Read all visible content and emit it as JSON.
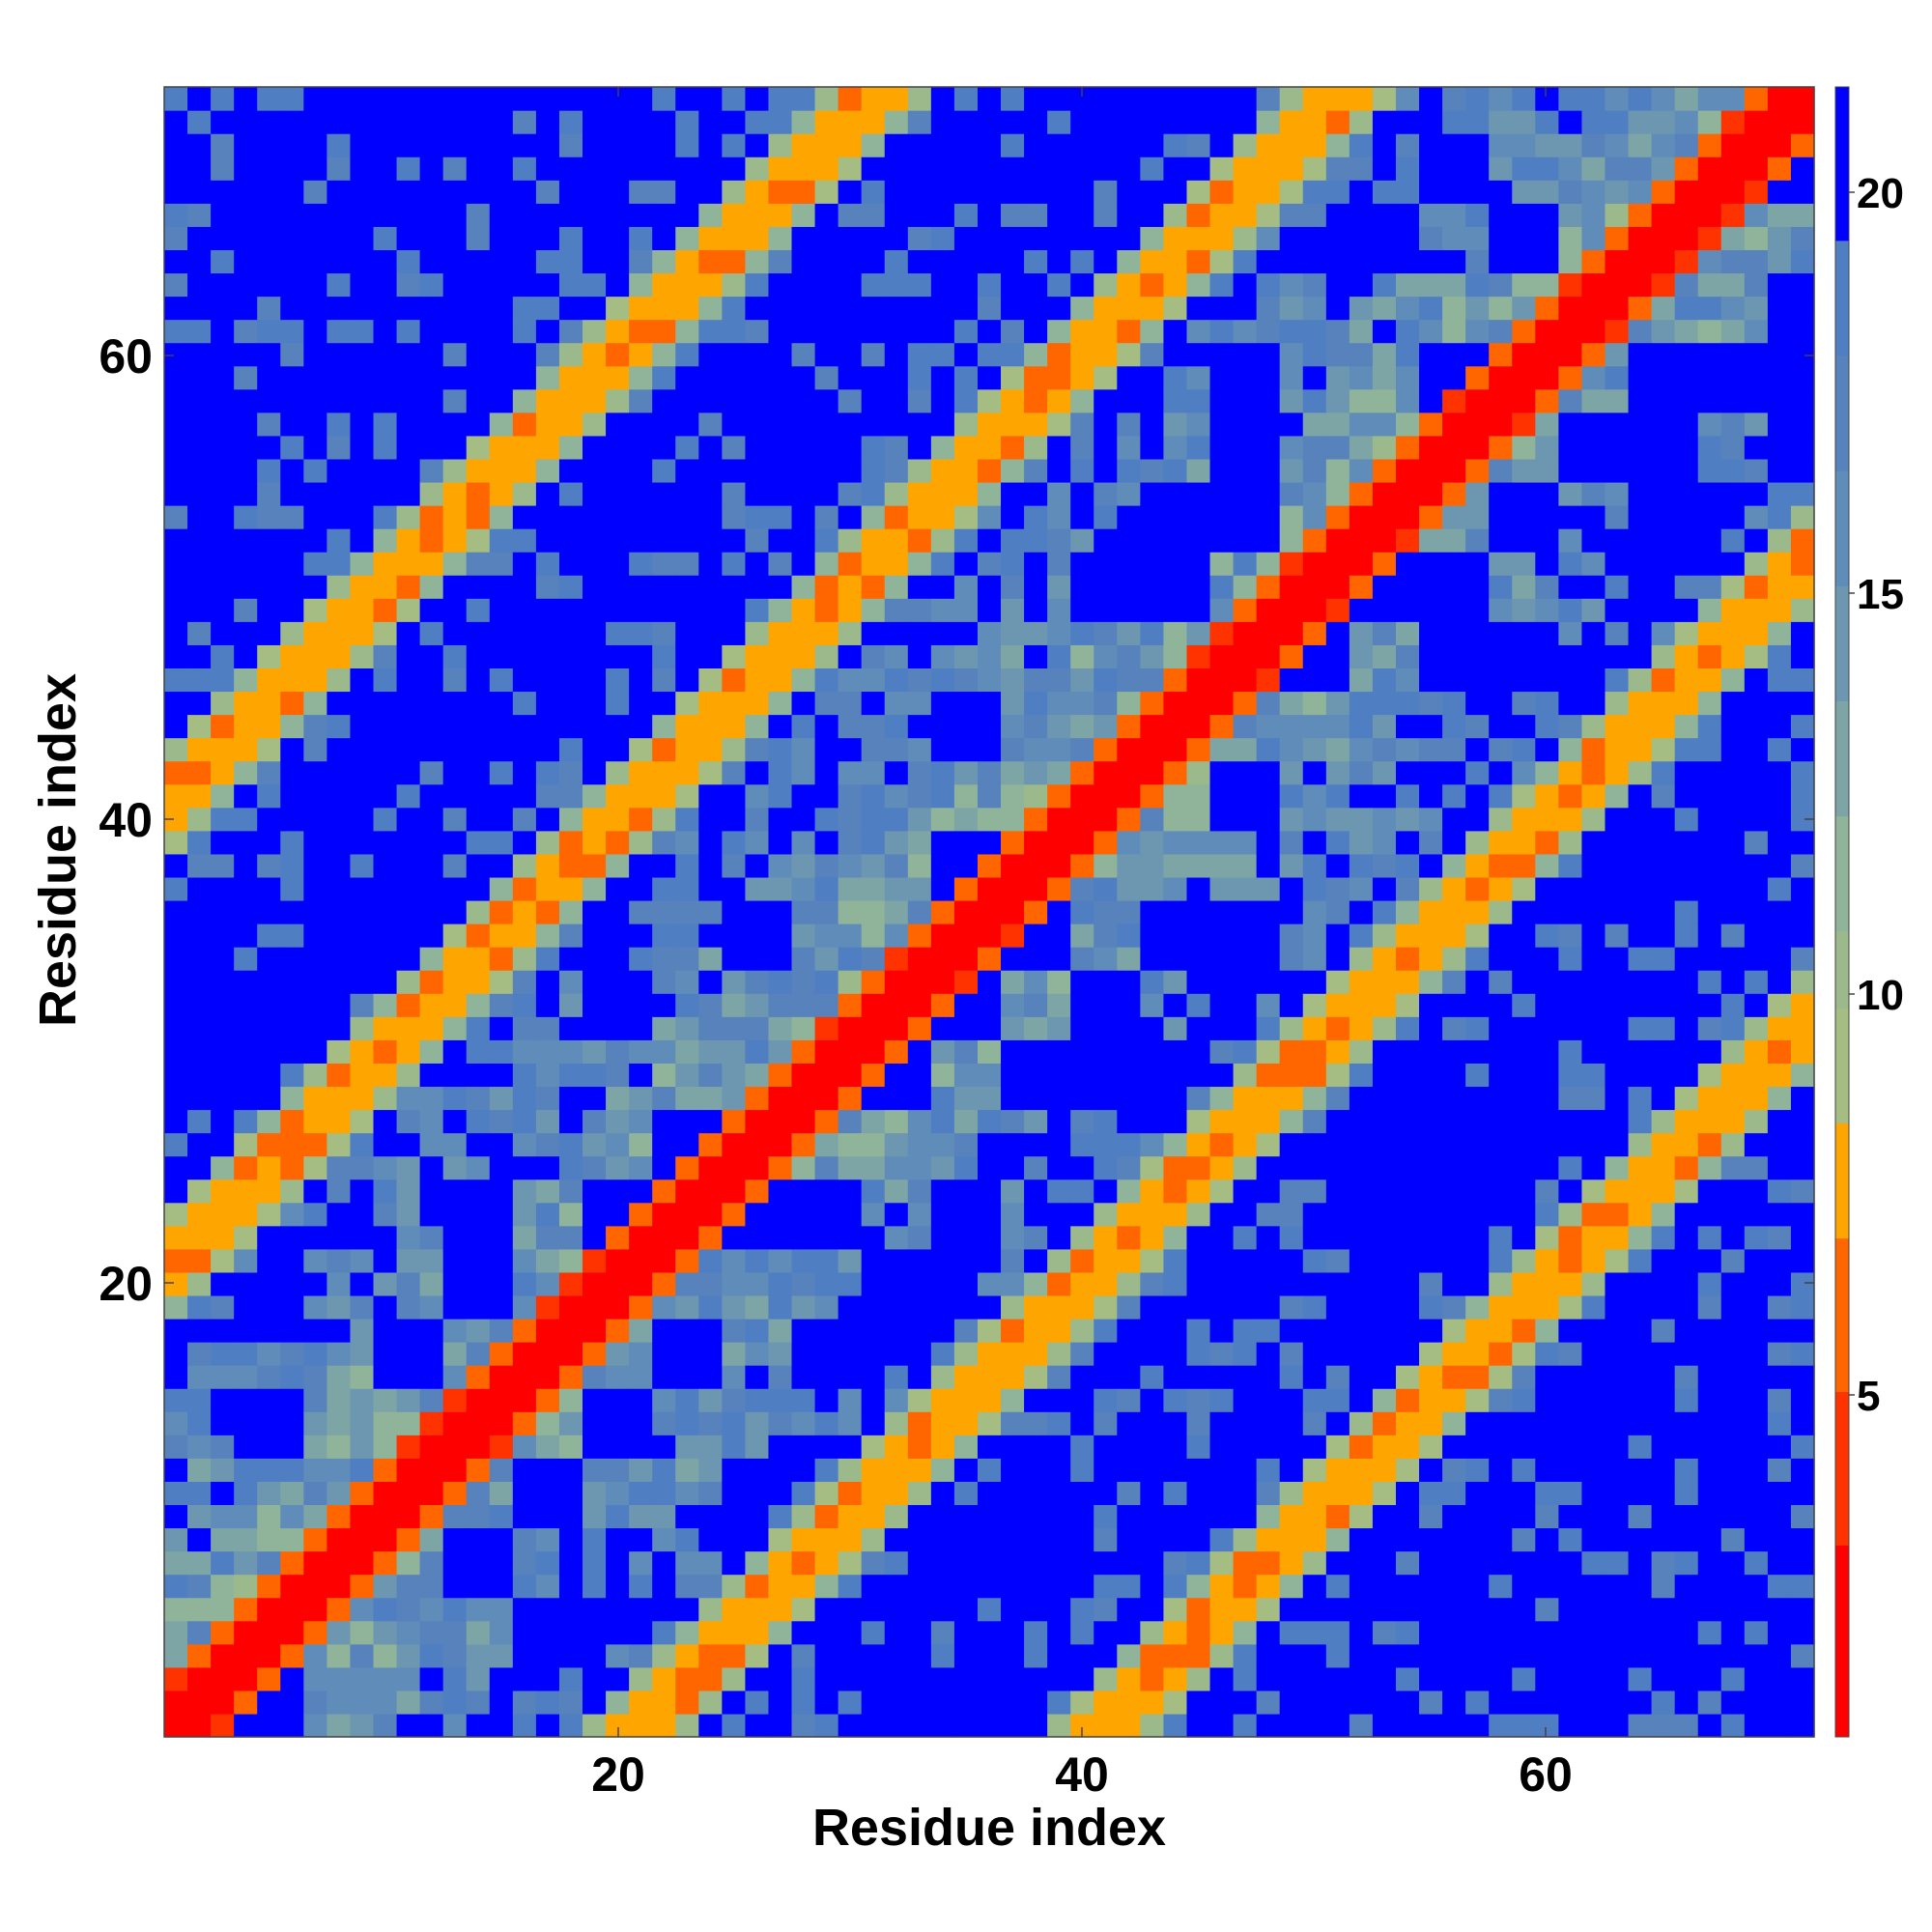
{
  "chart_data": {
    "type": "heatmap",
    "description_kind": "residue distance map",
    "xlabel": "Residue index",
    "ylabel": "Residue index",
    "n_residues": 71,
    "x_range": [
      1,
      72
    ],
    "y_range": [
      1,
      72
    ],
    "xticks": [
      20,
      40,
      60
    ],
    "yticks": [
      20,
      40,
      60
    ],
    "colorbar": {
      "ticks": [
        5,
        10,
        15,
        20
      ],
      "range": [
        0,
        21.5
      ],
      "color_bins": [
        {
          "max": 2.5,
          "color": "#ff0000"
        },
        {
          "max": 4.5,
          "color": "#ff3300"
        },
        {
          "max": 6.5,
          "color": "#ff6600"
        },
        {
          "max": 8.0,
          "color": "#ffa500"
        },
        {
          "max": 9.5,
          "color": "#a5bd83"
        },
        {
          "max": 10.5,
          "color": "#9cb98b"
        },
        {
          "max": 12.0,
          "color": "#8fb49a"
        },
        {
          "max": 13.5,
          "color": "#7ea5a6"
        },
        {
          "max": 15.0,
          "color": "#6d97b1"
        },
        {
          "max": 16.5,
          "color": "#608cba"
        },
        {
          "max": 18.0,
          "color": "#5782bc"
        },
        {
          "max": 19.5,
          "color": "#4f7fc2"
        },
        {
          "max": 21.5,
          "color": "#0000ff"
        }
      ]
    },
    "structure": {
      "main_diagonal": "offset 0, distance < 2.5",
      "parallel_bands": [
        {
          "offset": 20,
          "distance": "5–8"
        },
        {
          "offset": -20,
          "distance": "5–8"
        },
        {
          "offset": 40,
          "distance": "5–8"
        },
        {
          "offset": -40,
          "distance": "5–8"
        }
      ],
      "far_region_values": ">20 in scattered blue blocks"
    }
  },
  "labels": {
    "xlabel": "Residue index",
    "ylabel": "Residue index",
    "xtick_20": "20",
    "xtick_40": "40",
    "xtick_60": "60",
    "ytick_20": "20",
    "ytick_40": "40",
    "ytick_60": "60",
    "cbar_5": "5",
    "cbar_10": "10",
    "cbar_15": "15",
    "cbar_20": "20"
  }
}
